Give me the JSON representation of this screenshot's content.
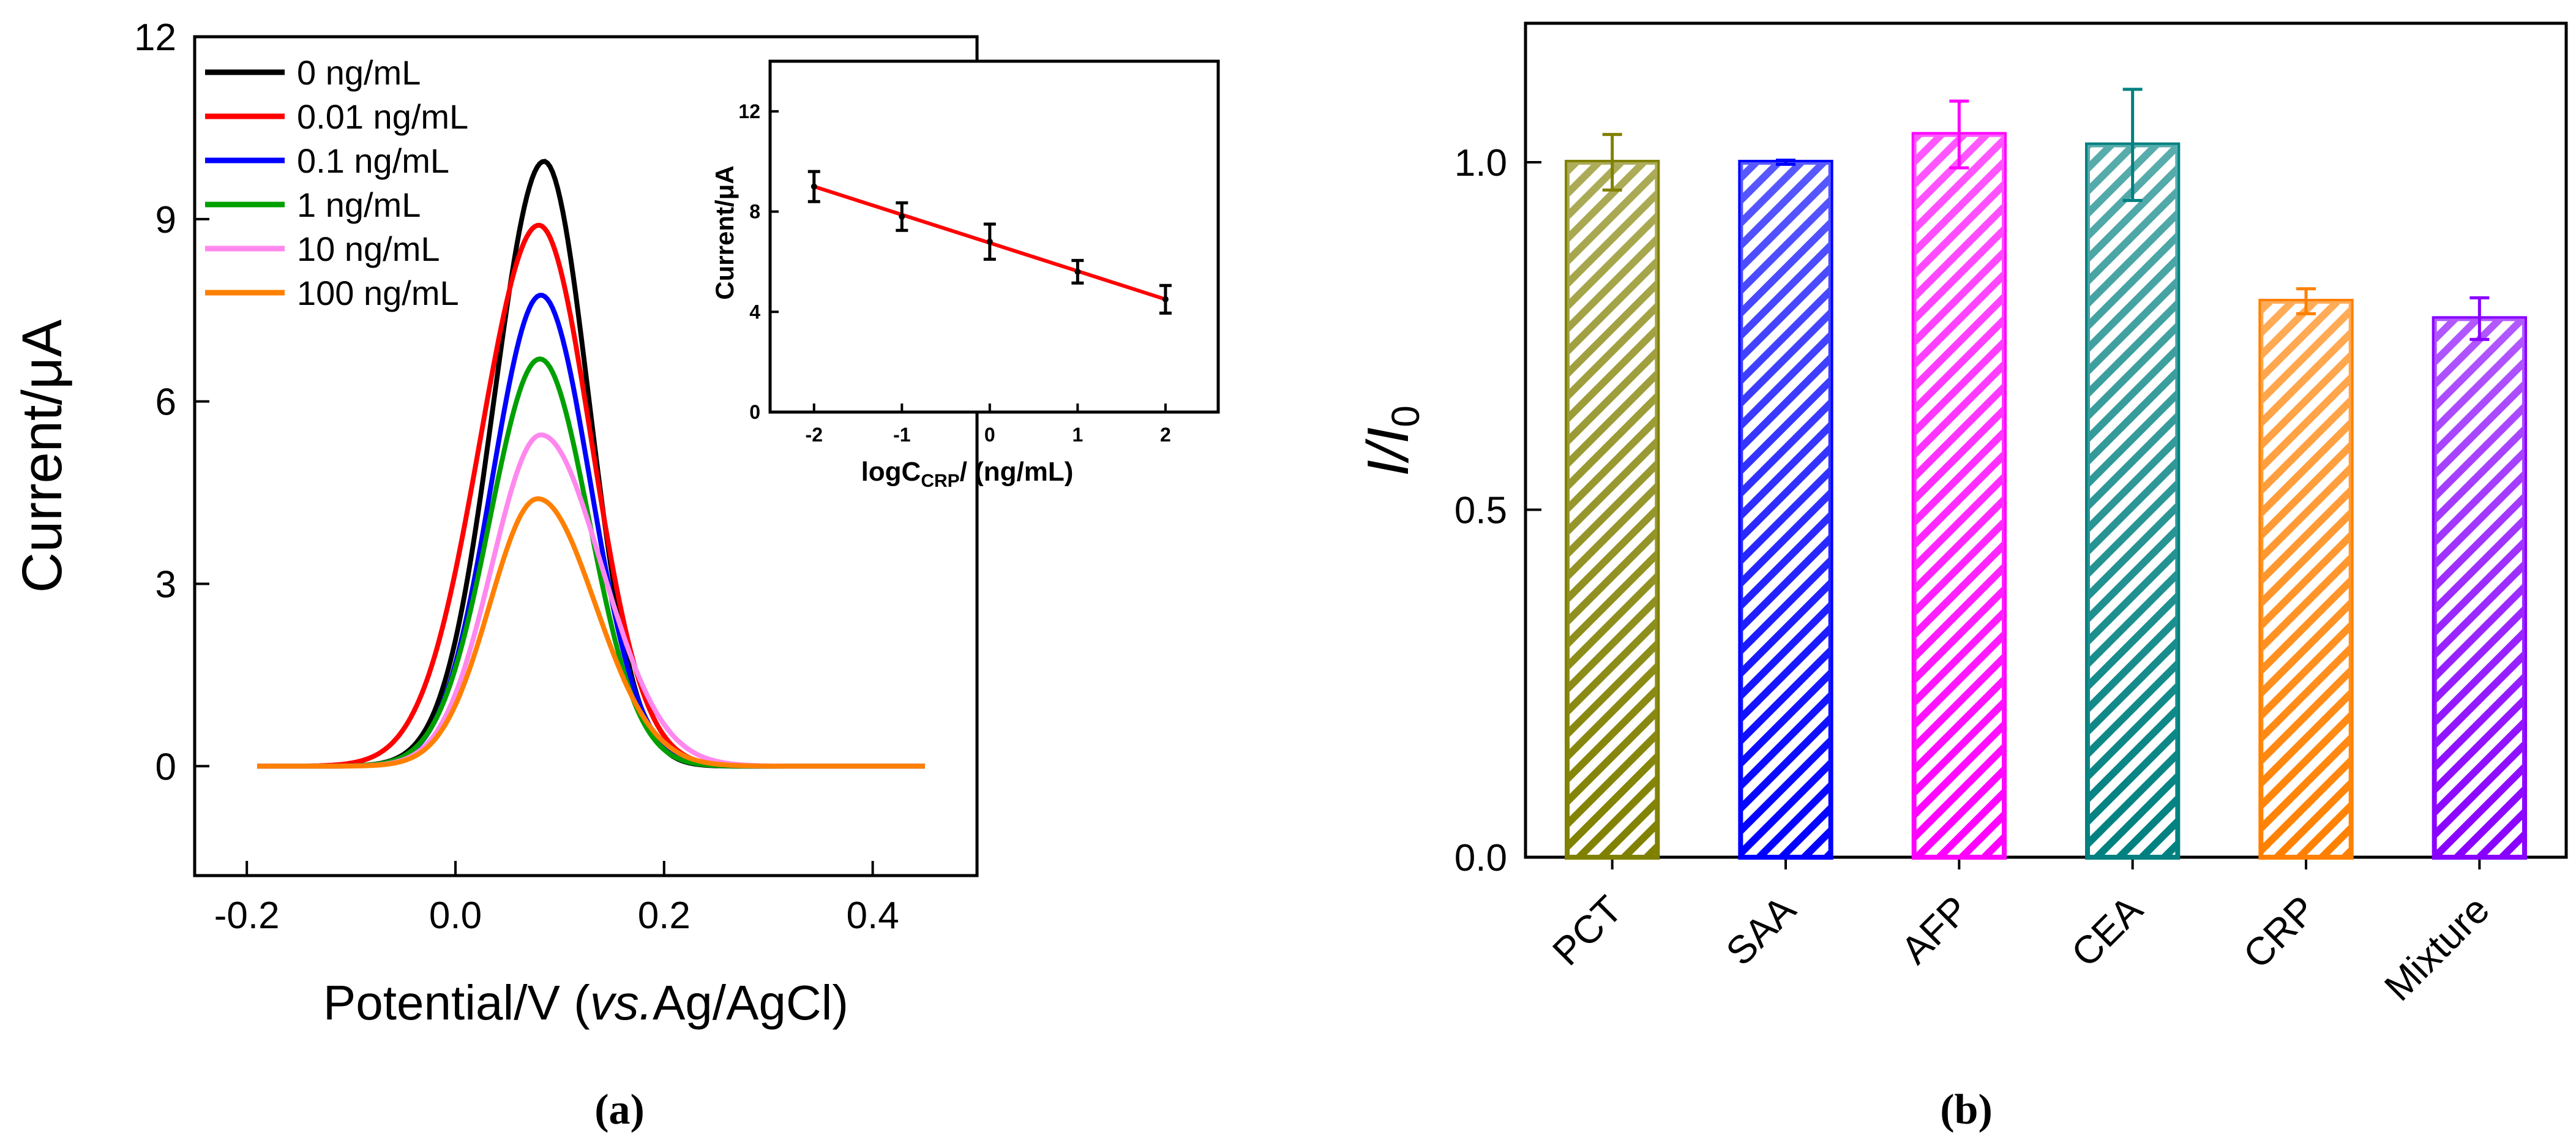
{
  "chart_data": [
    {
      "panel": "(a)",
      "type": "line",
      "xlabel": "Potential/V (vs.Ag/AgCl)",
      "xlabel_parts": {
        "pre": "Potential/V (",
        "italic": "vs.",
        "post": "Ag/AgCl)"
      },
      "ylabel": "Current/μA",
      "xlim": [
        -0.25,
        0.5
      ],
      "ylim": [
        -1.8,
        12
      ],
      "xticks": [
        -0.2,
        0.0,
        0.2,
        0.4
      ],
      "xtick_labels": [
        "-0.2",
        "0.0",
        "0.2",
        "0.4"
      ],
      "yticks": [
        0,
        3,
        6,
        9,
        12
      ],
      "ytick_labels": [
        "0",
        "3",
        "6",
        "9",
        "12"
      ],
      "legend_position": "top-left",
      "x_range": [
        -0.19,
        0.45
      ],
      "series": [
        {
          "name": "0 ng/mL",
          "color": "#000000",
          "peak_x": 0.085,
          "peak": 9.95,
          "width_left": 0.048,
          "width_right": 0.043,
          "baseline": 0.0
        },
        {
          "name": "0.01 ng/mL",
          "color": "#ff0000",
          "peak_x": 0.08,
          "peak": 8.9,
          "width_left": 0.056,
          "width_right": 0.05,
          "baseline": 0.0
        },
        {
          "name": "0.1 ng/mL",
          "color": "#0000ff",
          "peak_x": 0.082,
          "peak": 7.75,
          "width_left": 0.047,
          "width_right": 0.047,
          "baseline": 0.0
        },
        {
          "name": "1 ng/mL",
          "color": "#00a000",
          "peak_x": 0.081,
          "peak": 6.7,
          "width_left": 0.048,
          "width_right": 0.047,
          "baseline": 0.0
        },
        {
          "name": "10 ng/mL",
          "color": "#ff88ee",
          "peak_x": 0.082,
          "peak": 5.45,
          "width_left": 0.047,
          "width_right": 0.058,
          "baseline": 0.0
        },
        {
          "name": "100 ng/mL",
          "color": "#ff8000",
          "peak_x": 0.079,
          "peak": 4.4,
          "width_left": 0.046,
          "width_right": 0.055,
          "baseline": 0.0
        }
      ],
      "inset": {
        "type": "scatter",
        "xlabel": "logC",
        "xlabel_sub": "CRP",
        "xlabel_post": "/ (ng/mL)",
        "ylabel": "Current/μA",
        "xlim": [
          -2.5,
          2.6
        ],
        "ylim": [
          0,
          14
        ],
        "xticks": [
          -2,
          -1,
          0,
          1,
          2
        ],
        "xtick_labels": [
          "-2",
          "-1",
          "0",
          "1",
          "2"
        ],
        "yticks": [
          0,
          4,
          8,
          12
        ],
        "ytick_labels": [
          "0",
          "4",
          "8",
          "12"
        ],
        "points": [
          {
            "x": -2,
            "y": 9.0,
            "err": 0.6
          },
          {
            "x": -1,
            "y": 7.8,
            "err": 0.55
          },
          {
            "x": 0,
            "y": 6.8,
            "err": 0.7
          },
          {
            "x": 1,
            "y": 5.6,
            "err": 0.45
          },
          {
            "x": 2,
            "y": 4.5,
            "err": 0.55
          }
        ],
        "fit": {
          "x1": -2,
          "y1": 9.0,
          "x2": 2,
          "y2": 4.5,
          "color": "#ff0000"
        }
      }
    },
    {
      "panel": "(b)",
      "type": "bar",
      "ylabel": "I/I0",
      "ylim": [
        0,
        1.2
      ],
      "yticks": [
        0.0,
        0.5,
        1.0
      ],
      "ytick_labels": [
        "0.0",
        "0.5",
        "1.0"
      ],
      "categories": [
        "PCT",
        "SAA",
        "AFP",
        "CEA",
        "CRP",
        "Mixture"
      ],
      "values": [
        1.0,
        1.0,
        1.04,
        1.025,
        0.8,
        0.775
      ],
      "errors": [
        0.04,
        0.003,
        0.048,
        0.08,
        0.018,
        0.03
      ],
      "colors": [
        "#808000",
        "#0000ff",
        "#ff00ff",
        "#008080",
        "#ff8000",
        "#8800ff"
      ]
    }
  ]
}
